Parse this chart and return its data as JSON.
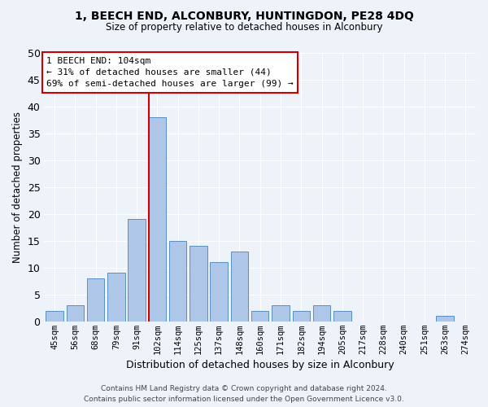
{
  "title": "1, BEECH END, ALCONBURY, HUNTINGDON, PE28 4DQ",
  "subtitle": "Size of property relative to detached houses in Alconbury",
  "xlabel": "Distribution of detached houses by size in Alconbury",
  "ylabel": "Number of detached properties",
  "bin_labels": [
    "45sqm",
    "56sqm",
    "68sqm",
    "79sqm",
    "91sqm",
    "102sqm",
    "114sqm",
    "125sqm",
    "137sqm",
    "148sqm",
    "160sqm",
    "171sqm",
    "182sqm",
    "194sqm",
    "205sqm",
    "217sqm",
    "228sqm",
    "240sqm",
    "251sqm",
    "263sqm",
    "274sqm"
  ],
  "bar_values": [
    2,
    3,
    8,
    9,
    19,
    38,
    15,
    14,
    11,
    13,
    2,
    3,
    2,
    3,
    2,
    0,
    0,
    0,
    0,
    1,
    0
  ],
  "bar_color": "#aec6e8",
  "bar_edge_color": "#5a8fc0",
  "highlight_bar_index": 5,
  "highlight_line_color": "#cc0000",
  "annotation_line1": "1 BEECH END: 104sqm",
  "annotation_line2": "← 31% of detached houses are smaller (44)",
  "annotation_line3": "69% of semi-detached houses are larger (99) →",
  "annotation_box_color": "#ffffff",
  "annotation_box_edge_color": "#cc0000",
  "footer_line1": "Contains HM Land Registry data © Crown copyright and database right 2024.",
  "footer_line2": "Contains public sector information licensed under the Open Government Licence v3.0.",
  "background_color": "#eef2f9",
  "grid_color": "#ffffff",
  "ylim": [
    0,
    50
  ],
  "yticks": [
    0,
    5,
    10,
    15,
    20,
    25,
    30,
    35,
    40,
    45,
    50
  ]
}
